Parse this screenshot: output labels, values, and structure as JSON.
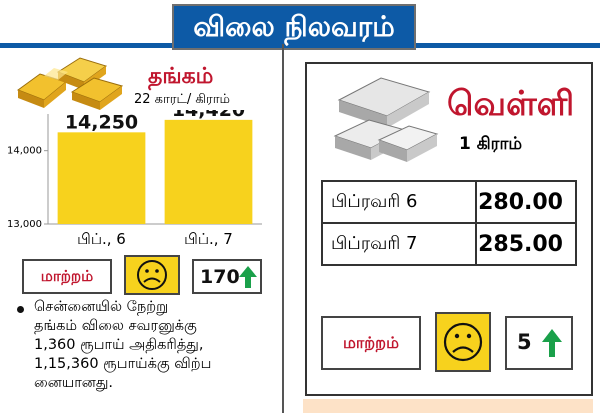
{
  "header": {
    "title": "விலை நிலவரம்"
  },
  "gold": {
    "title": "தங்கம்",
    "unit": "22 காரட்/ கிராம்",
    "change_label": "மாற்றம்",
    "change_value": "170",
    "bullet_lines": [
      "சென்னையில் நேற்று",
      "தங்கம் விலை சவரனுக்கு",
      "1,360 ரூபாய் அதிகரித்து,",
      "1,15,360 ரூபாய்க்கு விற்ப",
      "னையானது."
    ]
  },
  "chart_data": {
    "type": "bar",
    "categories": [
      "பிப்., 6",
      "பிப்., 7"
    ],
    "values": [
      14250,
      14420
    ],
    "value_labels": [
      "14,250",
      "14,420"
    ],
    "ylim": [
      13000,
      14500
    ],
    "yticks": [
      13000,
      14000
    ],
    "ytick_labels": [
      "13,000",
      "14,000"
    ],
    "bar_color": "#f7d21d"
  },
  "silver": {
    "title": "வெள்ளி",
    "unit": "1 கிராம்",
    "rows": [
      {
        "date": "பிப்ரவரி 6",
        "price": "280.00"
      },
      {
        "date": "பிப்ரவரி 7",
        "price": "285.00"
      }
    ],
    "change_label": "மாற்றம்",
    "change_value": "5"
  },
  "colors": {
    "brand_blue": "#0d5aa6",
    "title_red": "#c0162e",
    "up_green": "#1aa04a",
    "sad_face_bg": "#f7d21d"
  },
  "icons": [
    "gold-bars-icon",
    "silver-bars-icon",
    "sad-face-icon",
    "up-arrow-icon"
  ]
}
